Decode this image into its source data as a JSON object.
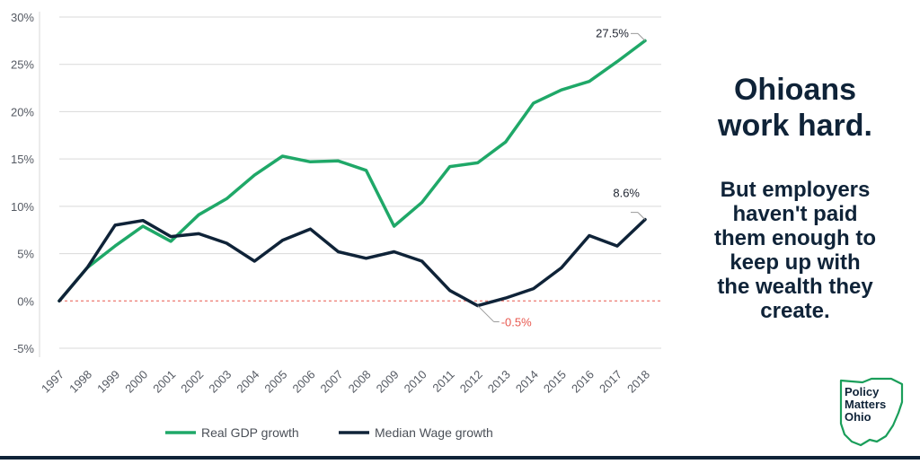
{
  "side_text": {
    "headline_line1": "Ohioans",
    "headline_line2": "work hard.",
    "sub_lines": [
      "But employers",
      "haven't paid",
      "them enough to",
      "keep up with",
      "the wealth they",
      "create."
    ]
  },
  "logo": {
    "lines": [
      "Policy",
      "Matters",
      "Ohio"
    ],
    "color": "#1a9e5a"
  },
  "colors": {
    "gdp": "#1fa868",
    "wage": "#0f2338",
    "zero_line": "#e8584f",
    "grid": "#d9d9d9",
    "annotation_neg": "#e8584f"
  },
  "chart_data": {
    "type": "line",
    "categories": [
      "1997",
      "1998",
      "1999",
      "2000",
      "2001",
      "2002",
      "2003",
      "2004",
      "2005",
      "2006",
      "2007",
      "2008",
      "2009",
      "2010",
      "2011",
      "2012",
      "2013",
      "2014",
      "2015",
      "2016",
      "2017",
      "2018"
    ],
    "ylim": [
      -5,
      30
    ],
    "yticks": [
      30,
      25,
      20,
      15,
      10,
      5,
      0,
      -5
    ],
    "ytick_labels": [
      "30%",
      "25%",
      "20%",
      "15%",
      "10%",
      "5%",
      "0%",
      "-5%"
    ],
    "grid": true,
    "legend_placement": "bottom",
    "series": [
      {
        "name": "Real GDP growth",
        "color": "#1fa868",
        "values": [
          0,
          3.5,
          5.8,
          7.9,
          6.3,
          9.1,
          10.8,
          13.3,
          15.3,
          14.7,
          14.8,
          13.8,
          7.9,
          10.4,
          14.2,
          14.6,
          16.8,
          20.9,
          22.3,
          23.2,
          25.3,
          27.5
        ]
      },
      {
        "name": "Median Wage growth",
        "color": "#0f2338",
        "values": [
          0,
          3.5,
          8.0,
          8.5,
          6.8,
          7.1,
          6.1,
          4.2,
          6.4,
          7.6,
          5.2,
          4.5,
          5.2,
          4.2,
          1.1,
          -0.5,
          0.3,
          1.3,
          3.5,
          6.9,
          5.8,
          8.6
        ]
      }
    ],
    "annotations": [
      {
        "text": "27.5%",
        "series": 0,
        "index": 21
      },
      {
        "text": "8.6%",
        "series": 1,
        "index": 21
      },
      {
        "text": "-0.5%",
        "series": 1,
        "index": 15
      }
    ]
  }
}
